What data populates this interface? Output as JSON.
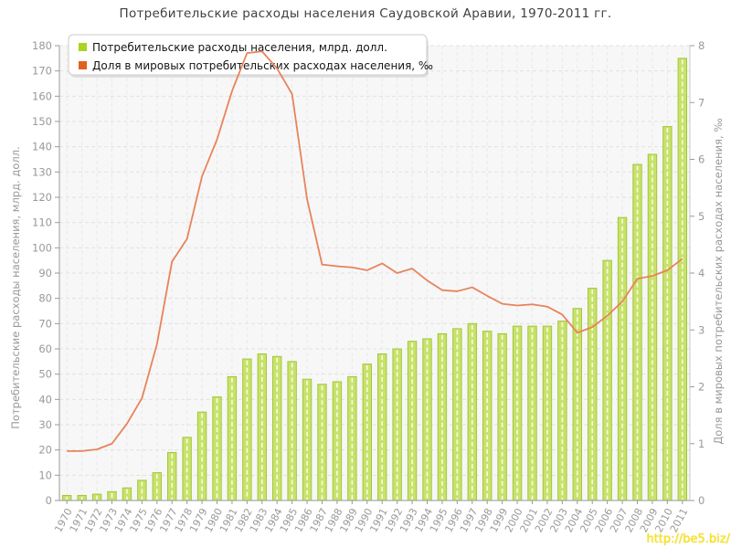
{
  "title": "Потребительские расходы населения Саудовской Аравии, 1970-2011 гг.",
  "watermark": "http://be5.biz/",
  "legend": [
    {
      "label": "Потребительские расходы населения, млрд. долл.",
      "color": "#a9d41f"
    },
    {
      "label": "Доля в мировых потребительских расходах населения, ‰",
      "color": "#e2601c"
    }
  ],
  "axes": {
    "left_title": "Потребительские расходы населения, млрд. долл.",
    "right_title": "Доля в мировых потребительских расходах населения, ‰"
  },
  "chart_data": {
    "type": "bar",
    "title": "Потребительские расходы населения Саудовской Аравии, 1970-2011 гг.",
    "grid": true,
    "legend_position": "top-left",
    "categories": [
      "1970",
      "1971",
      "1972",
      "1973",
      "1974",
      "1975",
      "1976",
      "1977",
      "1978",
      "1979",
      "1980",
      "1981",
      "1982",
      "1983",
      "1984",
      "1985",
      "1986",
      "1987",
      "1988",
      "1989",
      "1990",
      "1991",
      "1992",
      "1993",
      "1994",
      "1995",
      "1996",
      "1997",
      "1998",
      "1999",
      "2000",
      "2001",
      "2002",
      "2003",
      "2004",
      "2005",
      "2006",
      "2007",
      "2008",
      "2009",
      "2010",
      "2011"
    ],
    "left_axis": {
      "label": "Потребительские расходы населения, млрд. долл.",
      "min": 0,
      "max": 180,
      "tick_step": 10,
      "ticks": [
        0,
        10,
        20,
        30,
        40,
        50,
        60,
        70,
        80,
        90,
        100,
        110,
        120,
        130,
        140,
        150,
        160,
        170,
        180
      ]
    },
    "right_axis": {
      "label": "Доля в мировых потребительских расходах населения, ‰",
      "min": 0,
      "max": 8,
      "tick_step": 1,
      "ticks": [
        0,
        1,
        2,
        3,
        4,
        5,
        6,
        7,
        8
      ]
    },
    "series": [
      {
        "name": "Потребительские расходы населения, млрд. долл.",
        "type": "bar",
        "axis": "left",
        "color_fill": "#c8e26a",
        "color_edge": "#a2c83c",
        "values": [
          2,
          2,
          2.5,
          3.5,
          5,
          8,
          11,
          19,
          25,
          35,
          41,
          49,
          56,
          58,
          57,
          55,
          48,
          46,
          47,
          49,
          54,
          58,
          60,
          63,
          64,
          66,
          68,
          70,
          67,
          66,
          69,
          69,
          69,
          71,
          76,
          84,
          95,
          112,
          133,
          137,
          148,
          175
        ]
      },
      {
        "name": "Доля в мировых потребительских расходах населения, ‰",
        "type": "line",
        "axis": "right",
        "color": "#e8835b",
        "values": [
          0.87,
          0.87,
          0.9,
          1.0,
          1.35,
          1.8,
          2.75,
          4.2,
          4.6,
          5.7,
          6.35,
          7.2,
          7.87,
          7.9,
          7.6,
          7.15,
          5.3,
          4.15,
          4.12,
          4.1,
          4.05,
          4.17,
          4.0,
          4.08,
          3.87,
          3.7,
          3.68,
          3.75,
          3.6,
          3.46,
          3.43,
          3.45,
          3.41,
          3.27,
          2.95,
          3.05,
          3.25,
          3.5,
          3.9,
          3.95,
          4.05,
          4.25
        ]
      }
    ]
  }
}
